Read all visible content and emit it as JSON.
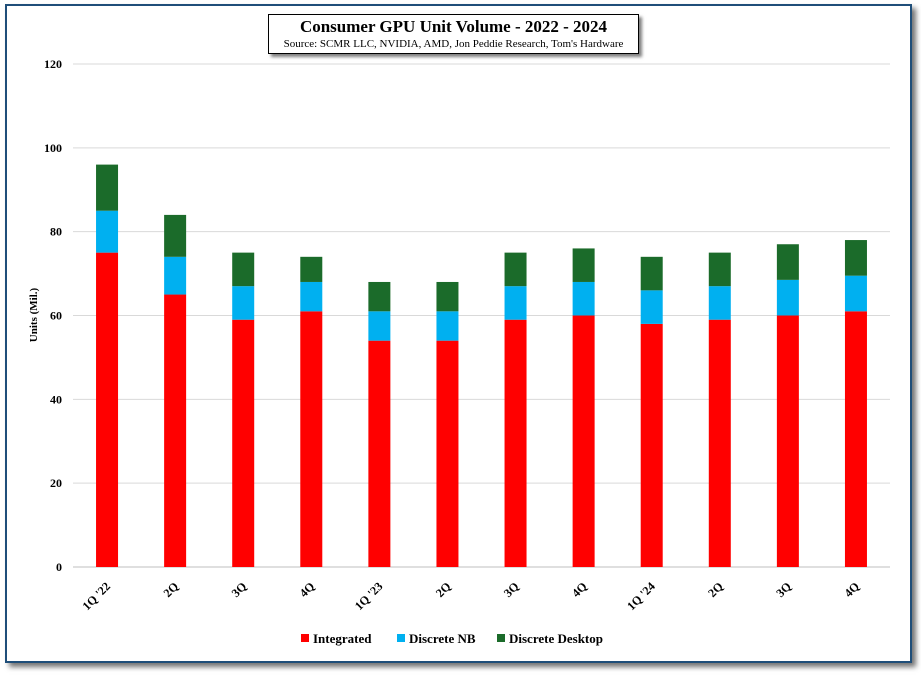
{
  "chart_data": {
    "type": "bar",
    "stacked": true,
    "title": "Consumer GPU Unit Volume - 2022 - 2024",
    "subtitle": "Source: SCMR LLC, NVIDIA,  AMD, Jon Peddie Research, Tom's Hardware",
    "xlabel": "",
    "ylabel": "Units (Mil.)",
    "ylim": [
      0,
      120
    ],
    "yticks": [
      "0",
      "20",
      "40",
      "60",
      "80",
      "100",
      "120"
    ],
    "grid": true,
    "legend_position": "bottom",
    "categories": [
      "1Q '22",
      "2Q",
      "3Q",
      "4Q",
      "1Q '23",
      "2Q",
      "3Q",
      "4Q",
      "1Q '24",
      "2Q",
      "3Q",
      "4Q"
    ],
    "series": [
      {
        "name": "Integrated",
        "color": "#ff0000",
        "values": [
          75,
          65,
          59,
          61,
          54,
          54,
          59,
          60,
          58,
          59,
          60,
          61
        ]
      },
      {
        "name": "Discrete NB",
        "color": "#00b0f0",
        "values": [
          10,
          9,
          8,
          7,
          7,
          7,
          8,
          8,
          8,
          8,
          8.5,
          8.5
        ]
      },
      {
        "name": "Discrete Desktop",
        "color": "#1b6b2a",
        "values": [
          11,
          10,
          8,
          6,
          7,
          7,
          8,
          8,
          8,
          8,
          8.5,
          8.5
        ]
      }
    ]
  }
}
